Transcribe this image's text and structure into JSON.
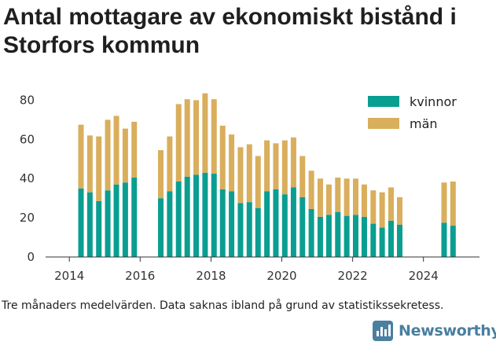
{
  "title": "Antal mottagare av ekonomiskt bistånd i Storfors kommun",
  "footnote": "Tre månaders medelvärden. Data saknas ibland på grund av statistikssekretess.",
  "brand": {
    "name": "Newsworthy",
    "color": "#4a7f9f"
  },
  "colors": {
    "kvinnor": "#0a9e91",
    "man": "#d9ae5c",
    "axis": "#333333"
  },
  "chart_data": {
    "type": "bar",
    "stacked": true,
    "x_unit": "date",
    "xlim": [
      "2013-05-01",
      "2025-08-01"
    ],
    "ylim": [
      0,
      85
    ],
    "x_ticks": [
      {
        "date": "2014-01-01",
        "label": "2014"
      },
      {
        "date": "2016-01-01",
        "label": "2016"
      },
      {
        "date": "2018-01-01",
        "label": "2018"
      },
      {
        "date": "2020-01-01",
        "label": "2020"
      },
      {
        "date": "2022-01-01",
        "label": "2022"
      },
      {
        "date": "2024-01-01",
        "label": "2024"
      }
    ],
    "y_ticks": [
      0,
      20,
      40,
      60,
      80
    ],
    "grid": false,
    "legend_position": "top-right",
    "series": [
      {
        "name": "kvinnor",
        "color": "#0a9e91",
        "points": [
          {
            "date": "2014-05-01",
            "value": 35
          },
          {
            "date": "2014-08-01",
            "value": 33
          },
          {
            "date": "2014-11-01",
            "value": 28.5
          },
          {
            "date": "2015-02-01",
            "value": 34
          },
          {
            "date": "2015-05-01",
            "value": 37
          },
          {
            "date": "2015-08-01",
            "value": 38
          },
          {
            "date": "2015-11-01",
            "value": 40.5
          },
          {
            "date": "2016-08-01",
            "value": 30
          },
          {
            "date": "2016-11-01",
            "value": 33.5
          },
          {
            "date": "2017-02-01",
            "value": 38.5
          },
          {
            "date": "2017-05-01",
            "value": 41
          },
          {
            "date": "2017-08-01",
            "value": 42
          },
          {
            "date": "2017-11-01",
            "value": 43
          },
          {
            "date": "2018-02-01",
            "value": 42.5
          },
          {
            "date": "2018-05-01",
            "value": 34.5
          },
          {
            "date": "2018-08-01",
            "value": 33.5
          },
          {
            "date": "2018-11-01",
            "value": 27.5
          },
          {
            "date": "2019-02-01",
            "value": 28
          },
          {
            "date": "2019-05-01",
            "value": 25
          },
          {
            "date": "2019-08-01",
            "value": 33.5
          },
          {
            "date": "2019-11-01",
            "value": 34.5
          },
          {
            "date": "2020-02-01",
            "value": 32
          },
          {
            "date": "2020-05-01",
            "value": 35.5
          },
          {
            "date": "2020-08-01",
            "value": 30.5
          },
          {
            "date": "2020-11-01",
            "value": 24.5
          },
          {
            "date": "2021-02-01",
            "value": 20.5
          },
          {
            "date": "2021-05-01",
            "value": 21.5
          },
          {
            "date": "2021-08-01",
            "value": 23
          },
          {
            "date": "2021-11-01",
            "value": 21
          },
          {
            "date": "2022-02-01",
            "value": 21.5
          },
          {
            "date": "2022-05-01",
            "value": 20.5
          },
          {
            "date": "2022-08-01",
            "value": 17
          },
          {
            "date": "2022-11-01",
            "value": 15
          },
          {
            "date": "2023-02-01",
            "value": 18.5
          },
          {
            "date": "2023-05-01",
            "value": 16.5
          },
          {
            "date": "2024-08-01",
            "value": 17.5
          },
          {
            "date": "2024-11-01",
            "value": 16
          }
        ]
      },
      {
        "name": "män",
        "color": "#d9ae5c",
        "points": [
          {
            "date": "2014-05-01",
            "value": 32.5
          },
          {
            "date": "2014-08-01",
            "value": 29
          },
          {
            "date": "2014-11-01",
            "value": 33
          },
          {
            "date": "2015-02-01",
            "value": 36
          },
          {
            "date": "2015-05-01",
            "value": 35
          },
          {
            "date": "2015-08-01",
            "value": 27.5
          },
          {
            "date": "2015-11-01",
            "value": 28.5
          },
          {
            "date": "2016-08-01",
            "value": 24.5
          },
          {
            "date": "2016-11-01",
            "value": 28
          },
          {
            "date": "2017-02-01",
            "value": 39.5
          },
          {
            "date": "2017-05-01",
            "value": 39.5
          },
          {
            "date": "2017-08-01",
            "value": 38
          },
          {
            "date": "2017-11-01",
            "value": 40.5
          },
          {
            "date": "2018-02-01",
            "value": 38
          },
          {
            "date": "2018-05-01",
            "value": 32.5
          },
          {
            "date": "2018-08-01",
            "value": 29
          },
          {
            "date": "2018-11-01",
            "value": 28.5
          },
          {
            "date": "2019-02-01",
            "value": 29.5
          },
          {
            "date": "2019-05-01",
            "value": 26.5
          },
          {
            "date": "2019-08-01",
            "value": 26
          },
          {
            "date": "2019-11-01",
            "value": 23.5
          },
          {
            "date": "2020-02-01",
            "value": 27.5
          },
          {
            "date": "2020-05-01",
            "value": 25.5
          },
          {
            "date": "2020-08-01",
            "value": 21
          },
          {
            "date": "2020-11-01",
            "value": 19.5
          },
          {
            "date": "2021-02-01",
            "value": 19.5
          },
          {
            "date": "2021-05-01",
            "value": 15.5
          },
          {
            "date": "2021-08-01",
            "value": 17.5
          },
          {
            "date": "2021-11-01",
            "value": 19
          },
          {
            "date": "2022-02-01",
            "value": 18.5
          },
          {
            "date": "2022-05-01",
            "value": 16.5
          },
          {
            "date": "2022-08-01",
            "value": 17
          },
          {
            "date": "2022-11-01",
            "value": 18
          },
          {
            "date": "2023-02-01",
            "value": 17
          },
          {
            "date": "2023-05-01",
            "value": 14
          },
          {
            "date": "2024-08-01",
            "value": 20.5
          },
          {
            "date": "2024-11-01",
            "value": 22.5
          }
        ]
      }
    ]
  }
}
